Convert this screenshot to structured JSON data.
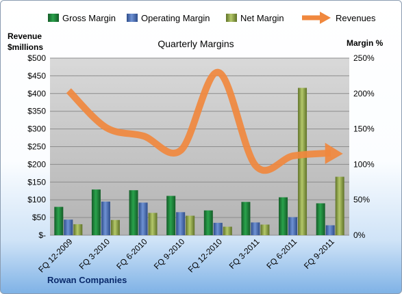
{
  "chart_data": {
    "type": "bar",
    "title": "Quarterly Margins",
    "categories": [
      "FQ 12-2009",
      "FQ 3-2010",
      "FQ 6-2010",
      "FQ 9-2010",
      "FQ 12-2010",
      "FQ 3-2011",
      "FQ 6-2011",
      "FQ 9-2011"
    ],
    "series": [
      {
        "name": "Gross Margin",
        "axis": "left",
        "color": "#1f8a3c",
        "values": [
          80,
          129,
          127,
          111,
          70,
          94,
          107,
          90
        ]
      },
      {
        "name": "Operating Margin",
        "axis": "left",
        "color": "#4f72b8",
        "values": [
          44,
          95,
          92,
          65,
          35,
          36,
          51,
          28
        ]
      },
      {
        "name": "Net Margin",
        "axis": "left",
        "color": "#9aae4a",
        "values": [
          31,
          43,
          63,
          55,
          24,
          30,
          416,
          165
        ]
      },
      {
        "name": "Revenues",
        "axis": "right",
        "type": "line",
        "color": "#f0883e",
        "values": [
          204,
          152,
          140,
          120,
          230,
          98,
          112,
          116
        ]
      }
    ],
    "left_axis": {
      "label_line1": "Revenue",
      "label_line2": "$millions",
      "ylim": [
        0,
        500
      ],
      "ticks": [
        "$-",
        "$50",
        "$100",
        "$150",
        "$200",
        "$250",
        "$300",
        "$350",
        "$400",
        "$450",
        "$500"
      ]
    },
    "right_axis": {
      "label": "Margin %",
      "ylim": [
        0,
        250
      ],
      "ticks": [
        "0%",
        "50%",
        "100%",
        "150%",
        "200%",
        "250%"
      ]
    },
    "legend_position": "top",
    "grid": true
  },
  "footer": {
    "company": "Rowan Companies"
  }
}
